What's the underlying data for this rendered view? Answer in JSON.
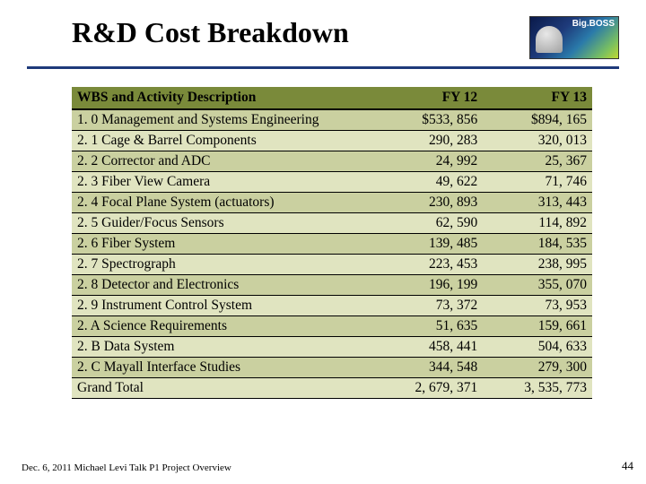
{
  "title": "R&D Cost Breakdown",
  "logo": {
    "label": "Big.BOSS"
  },
  "divider_color": "#1e3a7a",
  "table": {
    "header_bg": "#7a8a3a",
    "row_odd_bg": "#cad0a0",
    "row_even_bg": "#e0e4c0",
    "border_color": "#000000",
    "fontsize": 15.5,
    "columns": [
      {
        "label": "WBS and Activity Description",
        "align": "left"
      },
      {
        "label": "FY 12",
        "align": "right"
      },
      {
        "label": "FY 13",
        "align": "right"
      }
    ],
    "rows": [
      [
        "1. 0 Management and Systems Engineering",
        "$533, 856",
        "$894, 165"
      ],
      [
        "2. 1 Cage & Barrel Components",
        "290, 283",
        "320, 013"
      ],
      [
        "2. 2 Corrector and ADC",
        "24, 992",
        "25, 367"
      ],
      [
        "2. 3 Fiber View Camera",
        "49, 622",
        "71, 746"
      ],
      [
        "2. 4 Focal Plane System (actuators)",
        "230, 893",
        "313, 443"
      ],
      [
        "2. 5 Guider/Focus Sensors",
        "62, 590",
        "114, 892"
      ],
      [
        "2. 6 Fiber System",
        "139, 485",
        "184, 535"
      ],
      [
        "2. 7 Spectrograph",
        "223, 453",
        "238, 995"
      ],
      [
        "2. 8 Detector and Electronics",
        "196, 199",
        "355, 070"
      ],
      [
        "2. 9 Instrument Control System",
        "73, 372",
        "73, 953"
      ],
      [
        "2. A Science Requirements",
        "51, 635",
        "159, 661"
      ],
      [
        "2. B Data System",
        "458, 441",
        "504, 633"
      ],
      [
        "2. C Mayall Interface Studies",
        "344, 548",
        "279, 300"
      ]
    ],
    "total": {
      "label": "Grand Total",
      "fy12": "2, 679, 371",
      "fy13": "3, 535, 773"
    }
  },
  "footer": "Dec. 6, 2011 Michael Levi Talk P1 Project Overview",
  "page_number": "44"
}
